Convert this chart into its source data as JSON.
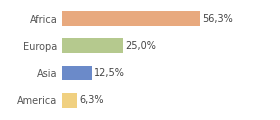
{
  "categories": [
    "Africa",
    "Europa",
    "Asia",
    "America"
  ],
  "values": [
    56.3,
    25.0,
    12.5,
    6.3
  ],
  "labels": [
    "56,3%",
    "25,0%",
    "12,5%",
    "6,3%"
  ],
  "bar_colors": [
    "#e8a97e",
    "#b5c98e",
    "#6b8ac9",
    "#f0d080"
  ],
  "background_color": "#ffffff",
  "xlim": [
    0,
    75
  ],
  "label_fontsize": 7,
  "tick_fontsize": 7,
  "bar_height": 0.55
}
